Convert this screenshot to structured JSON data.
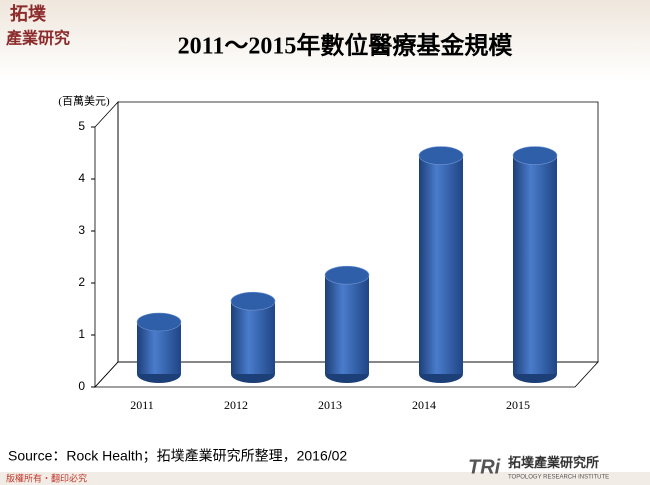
{
  "logo": {
    "line1": "拓墣",
    "line2": "產業研究"
  },
  "chart_data": {
    "type": "bar",
    "title": "2011～2015年數位醫療基金規模",
    "y_label": "(百萬美元)",
    "categories": [
      "2011",
      "2012",
      "2013",
      "2014",
      "2015"
    ],
    "values": [
      1.0,
      1.4,
      1.9,
      4.2,
      4.2
    ],
    "color": "#2f5fa8",
    "ylim": [
      0,
      5
    ],
    "yticks": [
      0,
      1,
      2,
      3,
      4,
      5
    ]
  },
  "source": "Source：Rock Health；拓墣產業研究所整理，2016/02",
  "footer": {
    "copyright": "版權所有・翻印必究",
    "brand": "TRi",
    "brand_name": "拓墣產業研究所",
    "brand_sub": "TOPOLOGY RESEARCH INSTITUTE"
  }
}
